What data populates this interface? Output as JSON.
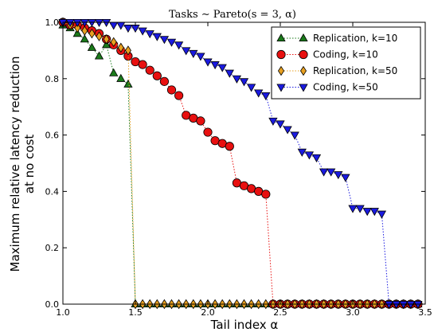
{
  "chart_data": {
    "type": "scatter",
    "title": "Tasks ∼ Pareto(s = 3, α)",
    "xlabel": "Tail index α",
    "ylabel_line1": "Maximum relative latency reduction",
    "ylabel_line2": "at no cost",
    "xlim": [
      1.0,
      3.5
    ],
    "ylim": [
      0.0,
      1.0
    ],
    "xticks": [
      "1.0",
      "1.5",
      "2.0",
      "2.5",
      "3.0",
      "3.5"
    ],
    "yticks": [
      "0.0",
      "0.2",
      "0.4",
      "0.6",
      "0.8",
      "1.0"
    ],
    "grid": false,
    "legend_position": "top-right",
    "series": [
      {
        "name": "Replication, k=10",
        "color": "#1a7a1a",
        "marker": "triangle-up",
        "x": [
          1.0,
          1.05,
          1.1,
          1.15,
          1.2,
          1.25,
          1.3,
          1.35,
          1.4,
          1.45,
          1.5,
          1.55,
          1.6,
          1.65,
          1.7,
          1.75,
          1.8,
          1.85,
          1.9,
          1.95,
          2.0,
          2.05,
          2.1,
          2.15,
          2.2,
          2.25,
          2.3,
          2.35,
          2.4,
          2.45,
          2.5,
          2.55,
          2.6,
          2.65,
          2.7,
          2.75,
          2.8,
          2.85,
          2.9,
          2.95,
          3.0,
          3.05,
          3.1,
          3.15,
          3.2,
          3.25,
          3.3,
          3.35,
          3.4,
          3.45
        ],
        "y": [
          0.99,
          0.98,
          0.96,
          0.94,
          0.91,
          0.88,
          0.92,
          0.82,
          0.8,
          0.78,
          0.0,
          0.0,
          0.0,
          0.0,
          0.0,
          0.0,
          0.0,
          0.0,
          0.0,
          0.0,
          0.0,
          0.0,
          0.0,
          0.0,
          0.0,
          0.0,
          0.0,
          0.0,
          0.0,
          0.0,
          0.0,
          0.0,
          0.0,
          0.0,
          0.0,
          0.0,
          0.0,
          0.0,
          0.0,
          0.0,
          0.0,
          0.0,
          0.0,
          0.0,
          0.0,
          0.0,
          0.0,
          0.0,
          0.0,
          0.0
        ]
      },
      {
        "name": "Coding, k=10",
        "color": "#e81010",
        "marker": "circle",
        "x": [
          1.0,
          1.05,
          1.1,
          1.15,
          1.2,
          1.25,
          1.3,
          1.35,
          1.4,
          1.45,
          1.5,
          1.55,
          1.6,
          1.65,
          1.7,
          1.75,
          1.8,
          1.85,
          1.9,
          1.95,
          2.0,
          2.05,
          2.1,
          2.15,
          2.2,
          2.25,
          2.3,
          2.35,
          2.4,
          2.45,
          2.5,
          2.55,
          2.6,
          2.65,
          2.7,
          2.75,
          2.8,
          2.85,
          2.9,
          2.95,
          3.0,
          3.05,
          3.1,
          3.15,
          3.2,
          3.25,
          3.3,
          3.35,
          3.4,
          3.45
        ],
        "y": [
          1.0,
          0.99,
          0.99,
          0.98,
          0.97,
          0.96,
          0.94,
          0.92,
          0.9,
          0.88,
          0.86,
          0.85,
          0.83,
          0.81,
          0.79,
          0.76,
          0.74,
          0.67,
          0.66,
          0.65,
          0.61,
          0.58,
          0.57,
          0.56,
          0.43,
          0.42,
          0.41,
          0.4,
          0.39,
          0.0,
          0.0,
          0.0,
          0.0,
          0.0,
          0.0,
          0.0,
          0.0,
          0.0,
          0.0,
          0.0,
          0.0,
          0.0,
          0.0,
          0.0,
          0.0,
          0.0,
          0.0,
          0.0,
          0.0,
          0.0
        ]
      },
      {
        "name": "Replication, k=50",
        "color": "#e8a020",
        "marker": "diamond",
        "x": [
          1.0,
          1.05,
          1.1,
          1.15,
          1.2,
          1.25,
          1.3,
          1.35,
          1.4,
          1.45,
          1.5,
          1.55,
          1.6,
          1.65,
          1.7,
          1.75,
          1.8,
          1.85,
          1.9,
          1.95,
          2.0,
          2.05,
          2.1,
          2.15,
          2.2,
          2.25,
          2.3,
          2.35,
          2.4,
          2.45,
          2.5,
          2.55,
          2.6,
          2.65,
          2.7,
          2.75,
          2.8,
          2.85,
          2.9,
          2.95,
          3.0,
          3.05,
          3.1,
          3.15,
          3.2,
          3.25,
          3.3,
          3.35,
          3.4,
          3.45
        ],
        "y": [
          1.0,
          0.99,
          0.98,
          0.97,
          0.96,
          0.95,
          0.94,
          0.93,
          0.91,
          0.9,
          0.0,
          0.0,
          0.0,
          0.0,
          0.0,
          0.0,
          0.0,
          0.0,
          0.0,
          0.0,
          0.0,
          0.0,
          0.0,
          0.0,
          0.0,
          0.0,
          0.0,
          0.0,
          0.0,
          0.0,
          0.0,
          0.0,
          0.0,
          0.0,
          0.0,
          0.0,
          0.0,
          0.0,
          0.0,
          0.0,
          0.0,
          0.0,
          0.0,
          0.0,
          0.0,
          0.0,
          0.0,
          0.0,
          0.0,
          0.0
        ]
      },
      {
        "name": "Coding, k=50",
        "color": "#1a1ae0",
        "marker": "triangle-down",
        "x": [
          1.0,
          1.05,
          1.1,
          1.15,
          1.2,
          1.25,
          1.3,
          1.35,
          1.4,
          1.45,
          1.5,
          1.55,
          1.6,
          1.65,
          1.7,
          1.75,
          1.8,
          1.85,
          1.9,
          1.95,
          2.0,
          2.05,
          2.1,
          2.15,
          2.2,
          2.25,
          2.3,
          2.35,
          2.4,
          2.45,
          2.5,
          2.55,
          2.6,
          2.65,
          2.7,
          2.75,
          2.8,
          2.85,
          2.9,
          2.95,
          3.0,
          3.05,
          3.1,
          3.15,
          3.2,
          3.25,
          3.3,
          3.35,
          3.4,
          3.45
        ],
        "y": [
          1.0,
          1.0,
          1.0,
          1.0,
          1.0,
          1.0,
          1.0,
          0.99,
          0.99,
          0.98,
          0.98,
          0.97,
          0.96,
          0.95,
          0.94,
          0.93,
          0.92,
          0.9,
          0.89,
          0.88,
          0.86,
          0.85,
          0.84,
          0.82,
          0.8,
          0.79,
          0.77,
          0.75,
          0.74,
          0.65,
          0.64,
          0.62,
          0.6,
          0.54,
          0.53,
          0.52,
          0.47,
          0.47,
          0.46,
          0.45,
          0.34,
          0.34,
          0.33,
          0.33,
          0.32,
          0.0,
          0.0,
          0.0,
          0.0,
          0.0
        ]
      }
    ]
  }
}
